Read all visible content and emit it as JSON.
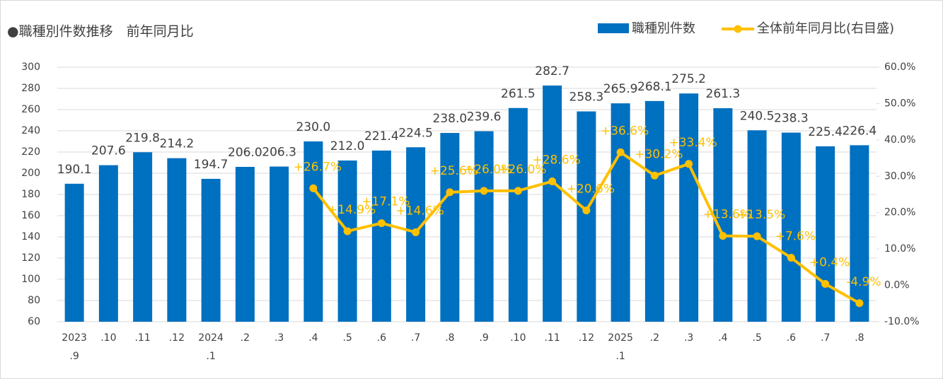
{
  "chart_data": {
    "type": "bar",
    "title": "●職種別件数推移　前年同月比",
    "categories": [
      "2023\n.9",
      ".10",
      ".11",
      ".12",
      "2024\n.1",
      ".2",
      ".3",
      ".4",
      ".5",
      ".6",
      ".7",
      ".8",
      ".9",
      ".10",
      ".11",
      ".12",
      "2025\n.1",
      ".2",
      ".3",
      ".4",
      ".5",
      ".6",
      ".7",
      ".8"
    ],
    "series": [
      {
        "name": "職種別件数",
        "type": "bar",
        "color": "#0070c0",
        "values": [
          190.1,
          207.6,
          219.8,
          214.2,
          194.7,
          206.0,
          206.3,
          230.0,
          212.0,
          221.4,
          224.5,
          238.0,
          239.6,
          261.5,
          282.7,
          258.3,
          265.9,
          268.1,
          275.2,
          261.3,
          240.5,
          238.3,
          225.4,
          226.4
        ],
        "value_labels": [
          "190.1",
          "207.6",
          "219.8",
          "214.2",
          "194.7",
          "206.0",
          "206.3",
          "230.0",
          "212.0",
          "221.4",
          "224.5",
          "238.0",
          "239.6",
          "261.5",
          "282.7",
          "258.3",
          "265.9",
          "268.1",
          "275.2",
          "261.3",
          "240.5",
          "238.3",
          "225.4",
          "226.4"
        ]
      },
      {
        "name": "全体前年同月比(右目盛)",
        "type": "line",
        "axis": "y2",
        "color": "#ffc000",
        "values": [
          null,
          null,
          null,
          null,
          null,
          null,
          null,
          26.7,
          14.9,
          17.1,
          14.6,
          25.6,
          26.0,
          26.0,
          28.6,
          20.6,
          36.6,
          30.2,
          33.4,
          13.6,
          13.5,
          7.6,
          0.4,
          -4.9
        ],
        "value_labels": [
          null,
          null,
          null,
          null,
          null,
          null,
          null,
          "+26.7%",
          "+14.9%",
          "+17.1%",
          "+14.6%",
          "+25.6%",
          "+26.0%",
          "+26.0%",
          "+28.6%",
          "+20.6%",
          "+36.6%",
          "+30.2%",
          "+33.4%",
          "+13.6%",
          "+13.5%",
          "+7.6%",
          "+0.4%",
          "-4.9%"
        ]
      }
    ],
    "ylim": [
      60,
      300
    ],
    "yticks": [
      60,
      80,
      100,
      120,
      140,
      160,
      180,
      200,
      220,
      240,
      260,
      280,
      300
    ],
    "y2lim": [
      -10,
      60
    ],
    "y2ticks": [
      {
        "value": -10,
        "label": "-10.0%"
      },
      {
        "value": 0,
        "label": "0.0%"
      },
      {
        "value": 10,
        "label": "10.0%"
      },
      {
        "value": 20,
        "label": "20.0%"
      },
      {
        "value": 30,
        "label": "30.0%"
      },
      {
        "value": 40,
        "label": "40.0%"
      },
      {
        "value": 50,
        "label": "50.0%"
      },
      {
        "value": 60,
        "label": "60.0%"
      }
    ],
    "grid": true,
    "legend": "top-right"
  }
}
